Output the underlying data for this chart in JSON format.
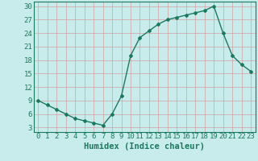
{
  "x": [
    0,
    1,
    2,
    3,
    4,
    5,
    6,
    7,
    8,
    9,
    10,
    11,
    12,
    13,
    14,
    15,
    16,
    17,
    18,
    19,
    20,
    21,
    22,
    23
  ],
  "y": [
    9,
    8,
    7,
    6,
    5,
    4.5,
    4,
    3.5,
    6,
    10,
    19,
    23,
    24.5,
    26,
    27,
    27.5,
    28,
    28.5,
    29,
    30,
    24,
    19,
    17,
    15.5
  ],
  "line_color": "#1a7a5e",
  "marker": "D",
  "marker_size": 2.0,
  "bg_color": "#c8ecec",
  "grid_color": "#d4a0a0",
  "xlabel": "Humidex (Indice chaleur)",
  "xlim": [
    -0.5,
    23.5
  ],
  "ylim": [
    2,
    31
  ],
  "yticks": [
    3,
    6,
    9,
    12,
    15,
    18,
    21,
    24,
    27,
    30
  ],
  "xticks": [
    0,
    1,
    2,
    3,
    4,
    5,
    6,
    7,
    8,
    9,
    10,
    11,
    12,
    13,
    14,
    15,
    16,
    17,
    18,
    19,
    20,
    21,
    22,
    23
  ],
  "xlabel_fontsize": 7.5,
  "tick_fontsize": 6.5,
  "linewidth": 1.0
}
